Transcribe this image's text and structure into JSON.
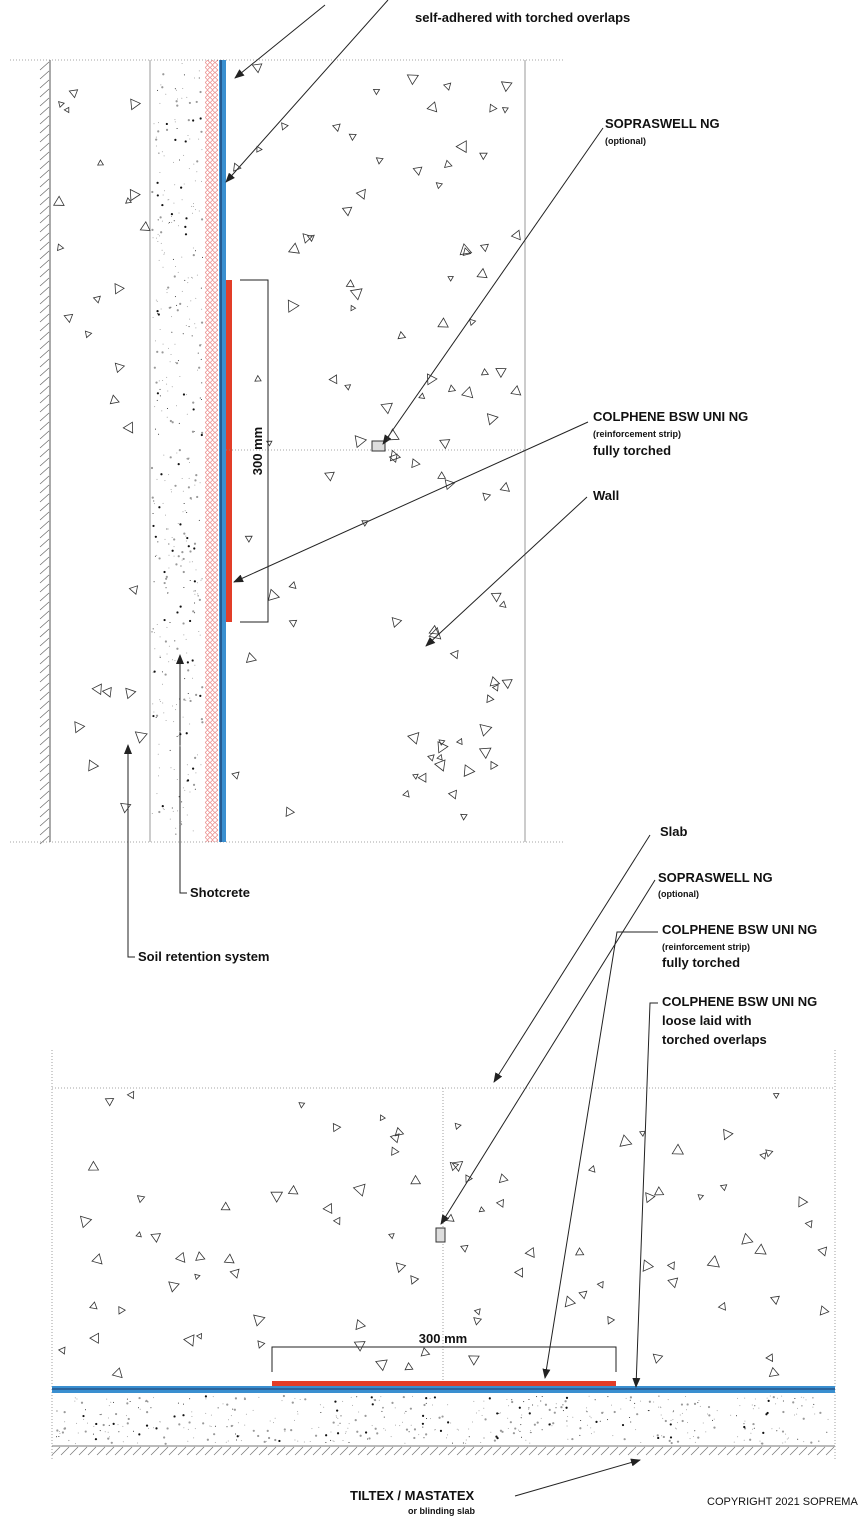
{
  "wall_section": {
    "membrane_note": "self-adhered with torched overlaps",
    "sopraswell": {
      "name": "SOPRASWELL NG",
      "note": "(optional)"
    },
    "reinforcement": {
      "name": "COLPHENE BSW UNI NG",
      "note": "(reinforcement strip)",
      "detail": "fully torched"
    },
    "wall": "Wall",
    "dimension": "300 mm",
    "shotcrete": "Shotcrete",
    "soil_retention": "Soil retention system"
  },
  "slab_section": {
    "slab": "Slab",
    "sopraswell": {
      "name": "SOPRASWELL NG",
      "note": "(optional)"
    },
    "reinforcement": {
      "name": "COLPHENE BSW UNI NG",
      "note": "(reinforcement strip)",
      "detail": "fully torched"
    },
    "membrane": {
      "name": "COLPHENE BSW UNI NG",
      "line1": "loose laid with",
      "line2": "torched overlaps"
    },
    "dimension": "300 mm",
    "base": {
      "name": "TILTEX / MASTATEX",
      "note": "or blinding slab"
    }
  },
  "copyright": "COPYRIGHT 2021 SOPREMA"
}
